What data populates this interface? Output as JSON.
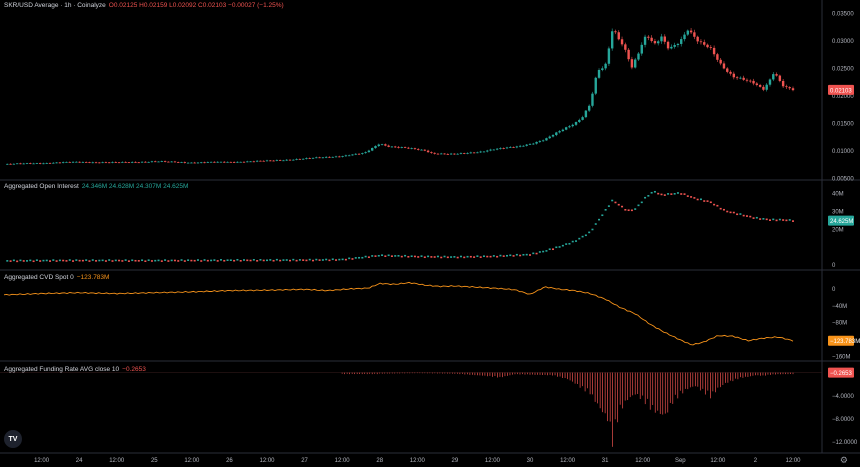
{
  "colors": {
    "background": "#000000",
    "up": "#26a69a",
    "down": "#ef5350",
    "cvd": "#f7931a",
    "text": "#d1d4dc",
    "axis_text": "#b2b5be",
    "separator": "#2a2e39"
  },
  "icons": {
    "logo": "tradingview-logo",
    "settings": "gear-icon"
  },
  "logo_text": "TV",
  "panes": {
    "price": {
      "title": "SKR/USD Average · 1h · Coinalyze",
      "ohlc": "O0.02125  H0.02159  L0.02092  C0.02103  −0.00027 (−1.25%)",
      "last_label": "0.02103"
    },
    "oi": {
      "title": "Aggregated Open Interest",
      "values": "24.346M  24.628M  24.307M  24.625M",
      "last_label": "24.625M"
    },
    "cvd": {
      "title": "Aggregated CVD Spot 0",
      "value": "−123.783M",
      "last_label": "−123.783M"
    },
    "funding": {
      "title": "Aggregated Funding Rate AVG close 10",
      "value": "−0.2653",
      "last_label": "−0.2653"
    }
  },
  "chart_data": [
    {
      "type": "candlestick",
      "name": "SKR/USD Average · 1h",
      "y_ticks": [
        "0.03500",
        "0.03000",
        "0.02500",
        "0.02000",
        "0.01500",
        "0.01000",
        "0.00500"
      ],
      "ylim": [
        0.005,
        0.0355
      ],
      "x_ticks": [
        "12:00",
        "24",
        "12:00",
        "25",
        "12:00",
        "26",
        "12:00",
        "27",
        "12:00",
        "28",
        "12:00",
        "29",
        "12:00",
        "30",
        "12:00",
        "31",
        "12:00",
        "Sep",
        "12:00",
        "2",
        "12:00"
      ],
      "x_range_days": [
        23.0,
        2.5
      ],
      "close_path": [
        [
          23.0,
          0.0075
        ],
        [
          23.5,
          0.0077
        ],
        [
          24.0,
          0.0079
        ],
        [
          24.5,
          0.0078
        ],
        [
          25.0,
          0.008
        ],
        [
          25.5,
          0.0078
        ],
        [
          26.0,
          0.0079
        ],
        [
          26.5,
          0.0081
        ],
        [
          27.0,
          0.0085
        ],
        [
          27.5,
          0.009
        ],
        [
          27.8,
          0.0095
        ],
        [
          28.0,
          0.0113
        ],
        [
          28.1,
          0.0108
        ],
        [
          28.3,
          0.0105
        ],
        [
          28.6,
          0.01
        ],
        [
          28.7,
          0.0095
        ],
        [
          29.0,
          0.0093
        ],
        [
          29.3,
          0.0097
        ],
        [
          29.5,
          0.0102
        ],
        [
          29.8,
          0.0106
        ],
        [
          30.0,
          0.0112
        ],
        [
          30.2,
          0.012
        ],
        [
          30.4,
          0.0135
        ],
        [
          30.6,
          0.015
        ],
        [
          30.7,
          0.0162
        ],
        [
          30.8,
          0.0185
        ],
        [
          30.85,
          0.0215
        ],
        [
          30.9,
          0.0245
        ],
        [
          31.0,
          0.025
        ],
        [
          31.1,
          0.032
        ],
        [
          31.2,
          0.03
        ],
        [
          31.3,
          0.0275
        ],
        [
          31.35,
          0.025
        ],
        [
          31.4,
          0.0265
        ],
        [
          31.55,
          0.031
        ],
        [
          31.65,
          0.029
        ],
        [
          31.75,
          0.0305
        ],
        [
          31.85,
          0.0285
        ],
        [
          32.0,
          0.03
        ],
        [
          32.1,
          0.032
        ],
        [
          32.25,
          0.0295
        ],
        [
          32.4,
          0.0285
        ],
        [
          32.55,
          0.0255
        ],
        [
          32.7,
          0.0235
        ],
        [
          32.85,
          0.0228
        ],
        [
          33.0,
          0.022
        ],
        [
          33.1,
          0.021
        ],
        [
          33.2,
          0.023
        ],
        [
          33.25,
          0.0245
        ],
        [
          33.35,
          0.022
        ],
        [
          33.45,
          0.0212
        ],
        [
          33.5,
          0.021
        ]
      ]
    },
    {
      "type": "scatter",
      "name": "Aggregated Open Interest",
      "y_ticks": [
        "40M",
        "30M",
        "20M",
        "0"
      ],
      "ylim": [
        -2,
        44
      ],
      "points": [
        [
          23.0,
          2.0
        ],
        [
          24.0,
          2.2
        ],
        [
          25.0,
          2.1
        ],
        [
          26.0,
          2.3
        ],
        [
          27.0,
          2.4
        ],
        [
          27.5,
          2.7
        ],
        [
          28.0,
          5.0
        ],
        [
          28.5,
          4.4
        ],
        [
          29.0,
          4.1
        ],
        [
          29.5,
          4.5
        ],
        [
          30.0,
          5.5
        ],
        [
          30.2,
          7.5
        ],
        [
          30.4,
          10
        ],
        [
          30.6,
          13
        ],
        [
          30.8,
          18
        ],
        [
          30.9,
          24
        ],
        [
          31.0,
          30
        ],
        [
          31.1,
          36
        ],
        [
          31.2,
          33
        ],
        [
          31.3,
          30
        ],
        [
          31.4,
          31
        ],
        [
          31.55,
          38
        ],
        [
          31.65,
          41
        ],
        [
          31.75,
          39
        ],
        [
          32.0,
          40
        ],
        [
          32.2,
          37
        ],
        [
          32.4,
          35
        ],
        [
          32.6,
          30
        ],
        [
          32.8,
          28
        ],
        [
          33.0,
          26
        ],
        [
          33.2,
          25
        ],
        [
          33.35,
          25
        ],
        [
          33.5,
          24.6
        ]
      ]
    },
    {
      "type": "line",
      "name": "Aggregated CVD Spot 0",
      "y_ticks": [
        "0",
        "−40M",
        "−80M",
        "−160M"
      ],
      "ylim": [
        -165,
        25
      ],
      "points": [
        [
          23.0,
          -15
        ],
        [
          23.5,
          -12
        ],
        [
          24.0,
          -10
        ],
        [
          24.5,
          -12
        ],
        [
          25.0,
          -10
        ],
        [
          25.5,
          -8
        ],
        [
          26.0,
          -5
        ],
        [
          26.5,
          -4
        ],
        [
          27.0,
          -2
        ],
        [
          27.3,
          -5
        ],
        [
          27.6,
          -1
        ],
        [
          27.85,
          1
        ],
        [
          28.0,
          12
        ],
        [
          28.2,
          10
        ],
        [
          28.4,
          14
        ],
        [
          28.6,
          8
        ],
        [
          28.8,
          5
        ],
        [
          29.0,
          6
        ],
        [
          29.3,
          3
        ],
        [
          29.6,
          0
        ],
        [
          29.8,
          -3
        ],
        [
          30.0,
          -14
        ],
        [
          30.2,
          4
        ],
        [
          30.4,
          -2
        ],
        [
          30.6,
          -5
        ],
        [
          30.8,
          -12
        ],
        [
          31.0,
          -25
        ],
        [
          31.2,
          -45
        ],
        [
          31.4,
          -60
        ],
        [
          31.6,
          -85
        ],
        [
          31.8,
          -105
        ],
        [
          32.0,
          -122
        ],
        [
          32.15,
          -134
        ],
        [
          32.3,
          -128
        ],
        [
          32.5,
          -112
        ],
        [
          32.7,
          -113
        ],
        [
          32.9,
          -124
        ],
        [
          33.1,
          -118
        ],
        [
          33.3,
          -115
        ],
        [
          33.5,
          -124
        ]
      ]
    },
    {
      "type": "histogram",
      "name": "Aggregated Funding Rate AVG close 10",
      "y_ticks": [
        "−4.0000",
        "−8.0000",
        "−12.0000"
      ],
      "ylim": [
        -13.5,
        0.8
      ],
      "points": [
        [
          28.0,
          -0.2
        ],
        [
          28.5,
          -0.1
        ],
        [
          29.0,
          -0.2
        ],
        [
          29.4,
          -0.6
        ],
        [
          29.6,
          -0.9
        ],
        [
          29.8,
          -0.3
        ],
        [
          30.3,
          -0.5
        ],
        [
          30.5,
          -1.2
        ],
        [
          30.6,
          -2.0
        ],
        [
          30.7,
          -3.0
        ],
        [
          30.8,
          -3.8
        ],
        [
          30.9,
          -6.0
        ],
        [
          31.0,
          -8.0
        ],
        [
          31.05,
          -9.0
        ],
        [
          31.1,
          -13.0
        ],
        [
          31.15,
          -9.5
        ],
        [
          31.2,
          -7.0
        ],
        [
          31.3,
          -5.0
        ],
        [
          31.4,
          -4.0
        ],
        [
          31.5,
          -5.0
        ],
        [
          31.6,
          -6.5
        ],
        [
          31.7,
          -7.5
        ],
        [
          31.8,
          -8.0
        ],
        [
          31.9,
          -5.5
        ],
        [
          32.0,
          -4.0
        ],
        [
          32.1,
          -3.0
        ],
        [
          32.2,
          -2.5
        ],
        [
          32.3,
          -3.5
        ],
        [
          32.4,
          -4.5
        ],
        [
          32.5,
          -3.0
        ],
        [
          32.6,
          -2.0
        ],
        [
          32.7,
          -1.5
        ],
        [
          32.8,
          -1.0
        ],
        [
          32.9,
          -0.8
        ],
        [
          33.0,
          -0.5
        ],
        [
          33.1,
          -0.6
        ],
        [
          33.2,
          -0.4
        ],
        [
          33.3,
          -0.3
        ],
        [
          33.4,
          -0.3
        ],
        [
          33.5,
          -0.27
        ]
      ]
    }
  ]
}
